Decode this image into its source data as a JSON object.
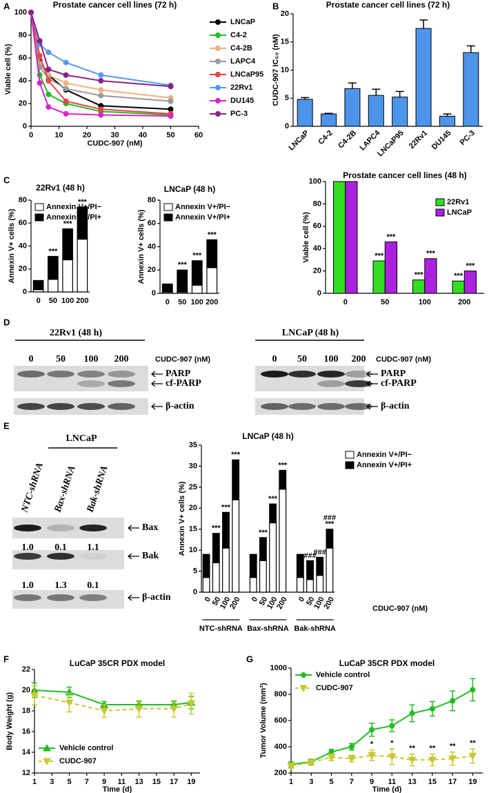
{
  "panels": [
    "A",
    "B",
    "C",
    "D",
    "E",
    "F",
    "G"
  ],
  "chart_data": [
    {
      "type": "line",
      "title": "Prostate cancer cell lines (72 h)",
      "x_label": "CUDC-907 (nM)",
      "y_label": "Viable cell (%)",
      "x": [
        0,
        3.125,
        6.25,
        12.5,
        25,
        50
      ],
      "xlim": [
        0,
        60
      ],
      "xticks": [
        0,
        10,
        20,
        30,
        40,
        50,
        60
      ],
      "ylim": [
        0,
        100
      ],
      "yticks": [
        0,
        20,
        40,
        60,
        80,
        100
      ],
      "legend": "right",
      "series": [
        {
          "name": "LNCaP",
          "color": "#000000",
          "values": [
            100,
            58,
            45,
            32,
            18,
            15
          ]
        },
        {
          "name": "C4-2",
          "color": "#22bb22",
          "values": [
            100,
            45,
            28,
            20,
            13,
            10
          ]
        },
        {
          "name": "C4-2B",
          "color": "#f0b080",
          "values": [
            100,
            55,
            45,
            38,
            32,
            25
          ]
        },
        {
          "name": "LAPC4",
          "color": "#999999",
          "values": [
            100,
            52,
            42,
            33,
            27,
            22
          ]
        },
        {
          "name": "LNCaP95",
          "color": "#ee4444",
          "values": [
            100,
            62,
            40,
            22,
            15,
            11
          ]
        },
        {
          "name": "22Rv1",
          "color": "#5599ee",
          "values": [
            100,
            72,
            65,
            56,
            45,
            36
          ]
        },
        {
          "name": "DU145",
          "color": "#dd22cc",
          "values": [
            100,
            38,
            17,
            11,
            10,
            9
          ]
        },
        {
          "name": "PC-3",
          "color": "#882288",
          "values": [
            100,
            75,
            50,
            45,
            40,
            35
          ]
        }
      ]
    },
    {
      "type": "bar",
      "title": "Prostate cancer cell lines (72 h)",
      "y_label": "CUDC-907 IC₅₀ (nM)",
      "categories": [
        "LNCaP",
        "C4-2",
        "C4-2B",
        "LAPC4",
        "LNCaP95",
        "22Rv1",
        "DU145",
        "PC-3"
      ],
      "values": [
        4.8,
        2.2,
        6.7,
        5.5,
        5.2,
        17.4,
        1.8,
        13.1
      ],
      "errors": [
        0.3,
        0.1,
        1.0,
        1.1,
        1.0,
        1.5,
        0.4,
        1.2
      ],
      "color": "#4d94ea",
      "ylim": [
        0,
        20
      ],
      "yticks": [
        0,
        5,
        10,
        15,
        20
      ],
      "x_tick_rotation": 45
    },
    {
      "type": "stacked_bar",
      "title": "22Rv1 (48 h)",
      "y_label": "Annexin V+ cells (%)",
      "categories": [
        "0",
        "50",
        "100",
        "200"
      ],
      "ylim": [
        0,
        80
      ],
      "yticks": [
        0,
        20,
        40,
        60,
        80
      ],
      "legend": "upper left",
      "series": [
        {
          "name": "Annexin V+/PI−",
          "color": "#ffffff",
          "values": [
            2,
            11,
            28,
            46
          ]
        },
        {
          "name": "Annexin V+/PI+",
          "color": "#000000",
          "values": [
            8,
            20,
            27,
            28
          ]
        }
      ],
      "annotations": [
        null,
        "***",
        "***",
        "***"
      ]
    },
    {
      "type": "stacked_bar",
      "title": "LNCaP (48 h)",
      "y_label": "Annexin V+ cells (%)",
      "categories": [
        "0",
        "50",
        "100",
        "200"
      ],
      "ylim": [
        0,
        80
      ],
      "yticks": [
        0,
        20,
        40,
        60,
        80
      ],
      "legend": "upper left",
      "series": [
        {
          "name": "Annexin V+/PI−",
          "color": "#ffffff",
          "values": [
            1,
            1,
            7,
            22
          ]
        },
        {
          "name": "Annexin V+/PI+",
          "color": "#000000",
          "values": [
            7,
            19,
            21,
            24
          ]
        }
      ],
      "annotations": [
        null,
        "***",
        "***",
        "***"
      ]
    },
    {
      "type": "grouped_bar",
      "title": "Prostate cancer cell lines (48 h)",
      "y_label": "Viable cell (%)",
      "categories": [
        "0",
        "50",
        "100",
        "200"
      ],
      "ylim": [
        0,
        100
      ],
      "yticks": [
        0,
        20,
        40,
        60,
        80,
        100
      ],
      "legend": "upper right",
      "series": [
        {
          "name": "22Rv1",
          "color": "#33dd22",
          "values": [
            100,
            29,
            12,
            11
          ],
          "annotations": [
            null,
            "***",
            "***",
            "***"
          ]
        },
        {
          "name": "LNCaP",
          "color": "#aa22dd",
          "values": [
            100,
            46,
            31,
            20
          ],
          "annotations": [
            null,
            "***",
            "***",
            "***"
          ]
        }
      ]
    },
    {
      "type": "stacked_bar",
      "title": "LNCaP (48 h)",
      "y_label": "Annexin V+ cells (%)",
      "x_label": "CDUC-907 (nM)",
      "categories": [
        "0",
        "50",
        "100",
        "200",
        "0",
        "50",
        "100",
        "200",
        "0",
        "50",
        "100",
        "200"
      ],
      "groups": [
        "NTC-shRNA",
        "Bax-shRNA",
        "Bak-shRNA"
      ],
      "ylim": [
        0,
        35
      ],
      "yticks": [
        0,
        5,
        10,
        15,
        20,
        25,
        30,
        35
      ],
      "legend": "right",
      "x_tick_rotation": 60,
      "series": [
        {
          "name": "Annexin V+/PI−",
          "color": "#ffffff",
          "values": [
            3.5,
            7,
            10.5,
            22,
            3.5,
            7.5,
            16.5,
            24.5,
            3.5,
            3,
            4,
            10.5
          ]
        },
        {
          "name": "Annexin V+/PI+",
          "color": "#000000",
          "values": [
            5.5,
            7,
            8.5,
            9.5,
            5.5,
            5.5,
            4.5,
            4.5,
            5.5,
            4.5,
            4.3,
            4.5
          ]
        }
      ],
      "annotations": [
        null,
        "***",
        "***",
        "***",
        null,
        "***",
        "***",
        "***",
        null,
        "###",
        "###",
        [
          "###",
          "***"
        ]
      ]
    },
    {
      "type": "line",
      "title": "LuCaP 35CR PDX model",
      "x_label": "Time (d)",
      "y_label": "Body Weight (g)",
      "x": [
        1,
        5,
        9,
        13,
        17,
        19
      ],
      "xlim": [
        1,
        20
      ],
      "xticks": [
        1,
        3,
        5,
        7,
        9,
        11,
        13,
        15,
        17,
        19
      ],
      "ylim": [
        12,
        22
      ],
      "yticks": [
        12,
        14,
        16,
        18,
        20,
        22
      ],
      "legend": "lower left",
      "series": [
        {
          "name": "Vehicle control",
          "color": "#22bb22",
          "marker": "triangle-up",
          "values": [
            20,
            19.8,
            18.6,
            18.6,
            18.6,
            18.8
          ],
          "errors": [
            0.7,
            0.5,
            0.3,
            0.3,
            0.3,
            0.6
          ]
        },
        {
          "name": "CUDC-907",
          "color": "#c8c830",
          "marker": "triangle-down",
          "dashed": true,
          "values": [
            19.5,
            18.8,
            18,
            18.2,
            18.2,
            18.7
          ],
          "errors": [
            0.9,
            0.9,
            0.6,
            0.8,
            0.8,
            1.0
          ]
        }
      ]
    },
    {
      "type": "line",
      "title": "LuCaP 35CR PDX model",
      "x_label": "Time (d)",
      "y_label": "Tumor Volume (mm³)",
      "x": [
        1,
        3,
        5,
        7,
        9,
        11,
        13,
        15,
        17,
        19
      ],
      "xlim": [
        1,
        20
      ],
      "xticks": [
        1,
        3,
        5,
        7,
        9,
        11,
        13,
        15,
        17,
        19
      ],
      "ylim": [
        200,
        1000
      ],
      "yticks": [
        200,
        400,
        600,
        800,
        1000
      ],
      "legend": "upper left",
      "series": [
        {
          "name": "Vehicle control",
          "color": "#22bb22",
          "marker": "circle",
          "values": [
            265,
            285,
            360,
            400,
            530,
            560,
            655,
            690,
            750,
            835
          ],
          "errors": [
            20,
            20,
            20,
            25,
            50,
            45,
            65,
            55,
            75,
            85
          ]
        },
        {
          "name": "CUDC-907",
          "color": "#c8c830",
          "marker": "triangle-down",
          "dashed": true,
          "values": [
            255,
            280,
            320,
            310,
            335,
            325,
            300,
            300,
            310,
            330
          ],
          "errors": [
            20,
            20,
            25,
            25,
            40,
            60,
            45,
            45,
            50,
            55
          ],
          "annotations": [
            null,
            null,
            null,
            null,
            "*",
            "*",
            "**",
            "**",
            "**",
            "**"
          ]
        }
      ]
    }
  ],
  "blots": [
    {
      "title": "22Rv1 (48 h)",
      "lanes": [
        "0",
        "50",
        "100",
        "200"
      ],
      "treatment": "CUDC-907 (nM)",
      "bands": [
        "PARP",
        "cf-PARP",
        "β-actin"
      ]
    },
    {
      "title": "LNCaP (48 h)",
      "lanes": [
        "0",
        "50",
        "100",
        "200"
      ],
      "treatment": "CUDC-907 (nM)",
      "bands": [
        "PARP",
        "cf-PARP",
        "β-actin"
      ]
    },
    {
      "title": "LNCaP",
      "lanes": [
        "NTC-shRNA",
        "Bax-shRNA",
        "Bak-shRNA"
      ],
      "bands": [
        "Bax",
        "Bak",
        "β-actin"
      ],
      "ratios": [
        [
          "1.0",
          "0.1",
          "1.1"
        ],
        [
          "1.0",
          "1.3",
          "0.1"
        ]
      ]
    }
  ]
}
